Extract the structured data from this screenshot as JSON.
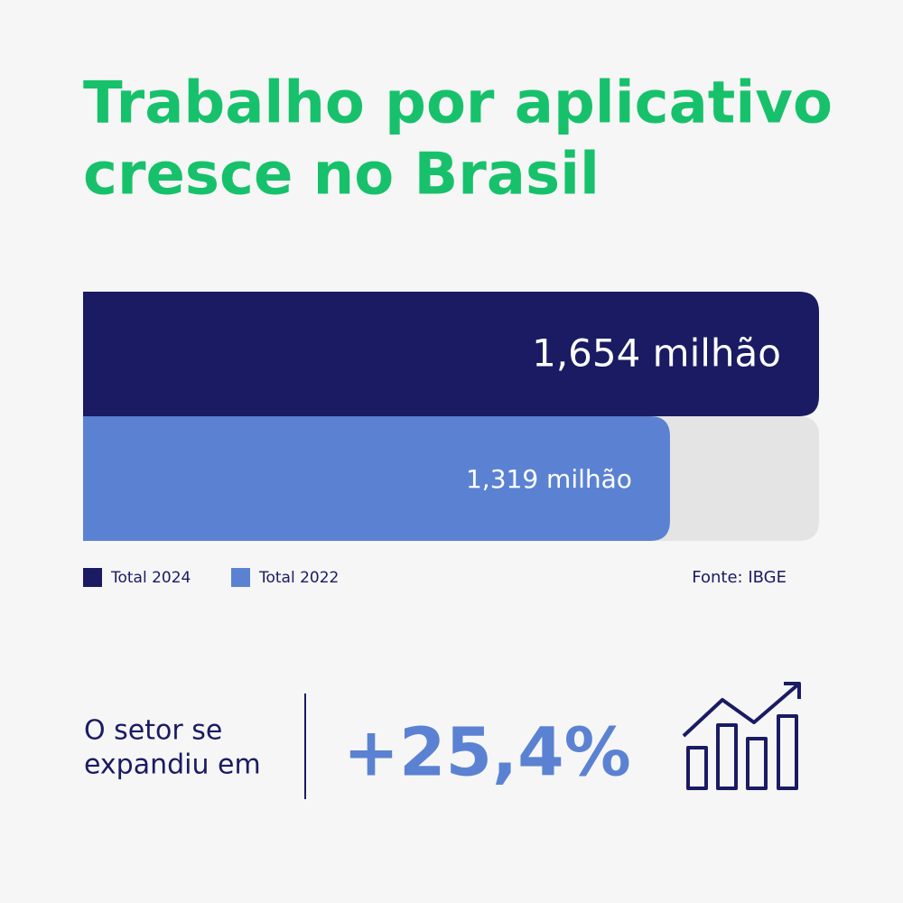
{
  "chart_data": {
    "type": "bar",
    "orientation": "horizontal",
    "title": [
      "Trabalho por aplicativo",
      "cresce no Brasil"
    ],
    "series": [
      {
        "name": "Total 2024",
        "color": "#1a1b63",
        "values": [
          1.654
        ],
        "value_labels": [
          "1,654 milhão"
        ]
      },
      {
        "name": "Total 2022",
        "color": "#5b82d2",
        "values": [
          1.319
        ],
        "value_labels": [
          "1,319 milhão"
        ]
      }
    ],
    "source": "Fonte: IBGE"
  },
  "summary": {
    "text": [
      "O setor se",
      "expandiu em"
    ],
    "value": "+25,4%"
  }
}
